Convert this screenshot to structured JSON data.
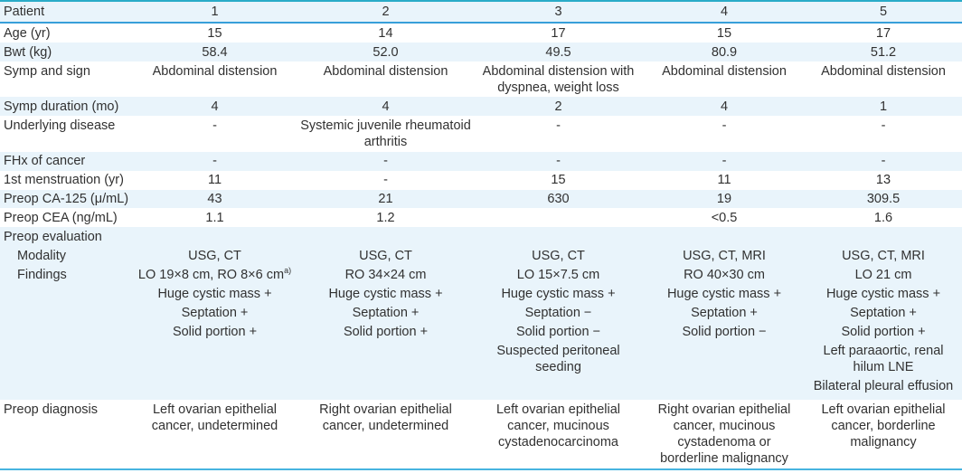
{
  "colors": {
    "stripe_blue": "#e9f4fb",
    "top_border": "#2aabc8",
    "header_underline": "#379fd9",
    "bottom_border": "#47b4e0",
    "text": "#313131"
  },
  "table": {
    "header": {
      "label": "Patient",
      "values": [
        "1",
        "2",
        "3",
        "4",
        "5"
      ]
    },
    "rows": [
      {
        "key": "age",
        "label": "Age (yr)",
        "stripe": "white",
        "values": [
          "15",
          "14",
          "17",
          "15",
          "17"
        ]
      },
      {
        "key": "bwt",
        "label": "Bwt (kg)",
        "stripe": "blue",
        "values": [
          "58.4",
          "52.0",
          "49.5",
          "80.9",
          "51.2"
        ]
      },
      {
        "key": "symp-and-sign",
        "label": "Symp and sign",
        "stripe": "white",
        "values": [
          "Abdominal distension",
          "Abdominal distension",
          "Abdominal distension with\ndyspnea, weight loss",
          "Abdominal distension",
          "Abdominal distension"
        ]
      },
      {
        "key": "symp-duration",
        "label": "Symp duration (mo)",
        "stripe": "blue",
        "values": [
          "4",
          "4",
          "2",
          "4",
          "1"
        ]
      },
      {
        "key": "underlying-disease",
        "label": "Underlying disease",
        "stripe": "white",
        "values": [
          "-",
          "Systemic juvenile rheumatoid\narthritis",
          "-",
          "-",
          "-"
        ]
      },
      {
        "key": "fhx-of-cancer",
        "label": "FHx of cancer",
        "stripe": "blue",
        "values": [
          "-",
          "-",
          "-",
          "-",
          "-"
        ]
      },
      {
        "key": "first-menstruation",
        "label": "1st menstruation (yr)",
        "stripe": "white",
        "values": [
          "11",
          "-",
          "15",
          "11",
          "13"
        ]
      },
      {
        "key": "preop-ca-125",
        "label": "Preop CA-125 (μ/mL)",
        "stripe": "blue",
        "values": [
          "43",
          "21",
          "630",
          "19",
          "309.5"
        ]
      },
      {
        "key": "preop-cea",
        "label": "Preop CEA (ng/mL)",
        "stripe": "white",
        "values": [
          "1.1",
          "1.2",
          "",
          "<0.5",
          "1.6"
        ]
      }
    ],
    "evaluation": {
      "label": "Preop evaluation",
      "modality": {
        "label": "Modality",
        "values": [
          "USG, CT",
          "USG, CT",
          "USG, CT",
          "USG, CT, MRI",
          "USG, CT, MRI"
        ]
      },
      "findings": {
        "label": "Findings",
        "values": [
          [
            {
              "text": "LO 19×8 cm, RO 8×6 cm",
              "sup": "a)"
            },
            "Huge cystic mass +",
            "Septation +",
            "Solid portion +"
          ],
          [
            "RO 34×24 cm",
            "Huge cystic mass +",
            "Septation +",
            "Solid portion +"
          ],
          [
            "LO 15×7.5 cm",
            "Huge cystic mass +",
            "Septation −",
            "Solid portion −",
            "Suspected peritoneal\nseeding"
          ],
          [
            "RO 40×30 cm",
            "Huge cystic mass +",
            "Septation +",
            "Solid portion −"
          ],
          [
            "LO 21 cm",
            "Huge cystic mass +",
            "Septation +",
            "Solid portion +",
            "Left paraaortic, renal\nhilum LNE",
            "Bilateral pleural effusion"
          ]
        ]
      }
    },
    "diagnosis": {
      "label": "Preop diagnosis",
      "values": [
        "Left ovarian epithelial\ncancer, undetermined",
        "Right ovarian epithelial\ncancer, undetermined",
        "Left ovarian epithelial\ncancer, mucinous\ncystadenocarcinoma",
        "Right ovarian epithelial\ncancer, mucinous\ncystadenoma or\nborderline malignancy",
        "Left ovarian epithelial\ncancer, borderline\nmalignancy"
      ]
    }
  }
}
